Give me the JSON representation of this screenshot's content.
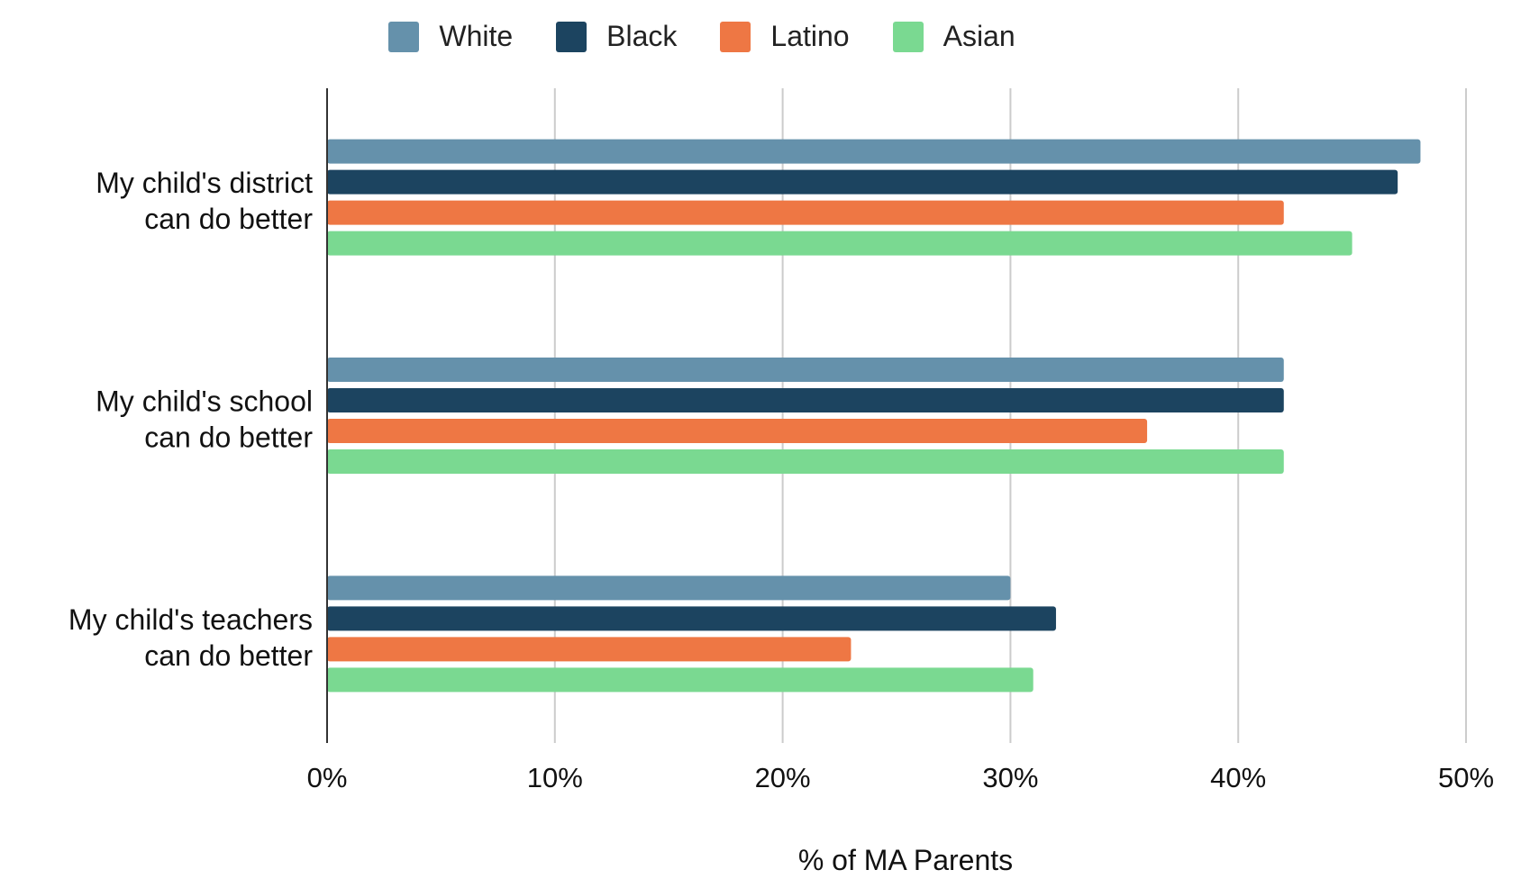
{
  "chart_data": {
    "type": "bar",
    "orientation": "horizontal",
    "title": "",
    "xlabel": "% of MA Parents",
    "ylabel": "",
    "xlim": [
      0,
      50
    ],
    "x_ticks": [
      0,
      10,
      20,
      30,
      40,
      50
    ],
    "x_tick_labels": [
      "0%",
      "10%",
      "20%",
      "30%",
      "40%",
      "50%"
    ],
    "grid": true,
    "legend_position": "top",
    "categories": [
      [
        "My child's district",
        "can do better"
      ],
      [
        "My child's school",
        "can do better"
      ],
      [
        "My child's teachers",
        "can do better"
      ]
    ],
    "series": [
      {
        "name": "White",
        "color": "#6591ab",
        "values": [
          48,
          42,
          30
        ]
      },
      {
        "name": "Black",
        "color": "#1c4460",
        "values": [
          47,
          42,
          32
        ]
      },
      {
        "name": "Latino",
        "color": "#ee7744",
        "values": [
          42,
          36,
          23
        ]
      },
      {
        "name": "Asian",
        "color": "#7ad991",
        "values": [
          45,
          42,
          31
        ]
      }
    ]
  }
}
